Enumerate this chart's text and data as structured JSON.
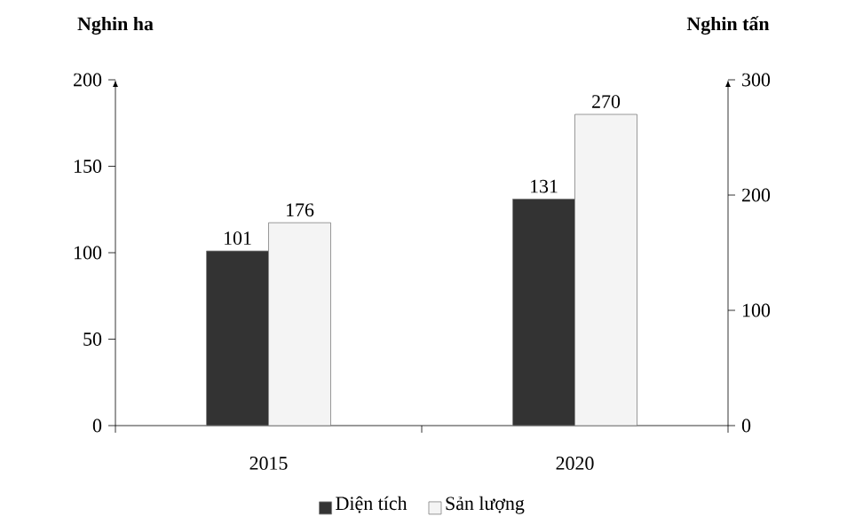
{
  "chart_data": {
    "type": "bar",
    "categories": [
      "2015",
      "2020"
    ],
    "ylabel": "Nghin ha",
    "y2label": "Nghin tấn",
    "series": [
      {
        "name": "Diện tích",
        "color": "#333333",
        "values": [
          101,
          131
        ]
      },
      {
        "name": "Sản lượng",
        "color": "#f4f4f4",
        "values": [
          176,
          270
        ],
        "axis": "y2"
      }
    ],
    "ylim": [
      0,
      200
    ],
    "yticks": [
      0,
      50,
      100,
      150,
      200
    ],
    "y2lim": [
      0,
      300
    ],
    "y2ticks": [
      0,
      100,
      200,
      300
    ],
    "data_labels": true,
    "legend": "bottom",
    "grid": false
  }
}
